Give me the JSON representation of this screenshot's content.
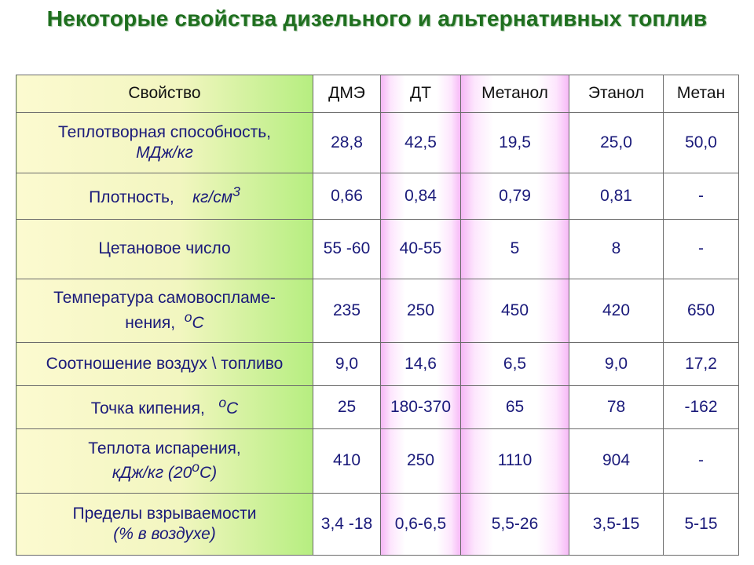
{
  "title": "Некоторые свойства дизельного и альтернативных топлив",
  "table": {
    "header": {
      "property": "Свойство",
      "cols": [
        "ДМЭ",
        "ДТ",
        "Метанол",
        "Этанол",
        "Метан"
      ]
    },
    "rows": [
      {
        "name_line1": "Теплотворная способность,",
        "unit": "МДж/кг",
        "values": [
          "28,8",
          "42,5",
          "19,5",
          "25,0",
          "50,0"
        ]
      },
      {
        "name_line1": "Плотность,",
        "unit": "кг/см",
        "unit_sup": "3",
        "values": [
          "0,66",
          "0,84",
          "0,79",
          "0,81",
          "-"
        ]
      },
      {
        "name_line1": "Цетановое число",
        "values": [
          "55 -60",
          "40-55",
          "5",
          "8",
          "-"
        ]
      },
      {
        "name_line1": "Температура самовоспламе-",
        "name_line2": "нения,",
        "unit_sup": "o",
        "unit": "С",
        "values": [
          "235",
          "250",
          "450",
          "420",
          "650"
        ]
      },
      {
        "name_line1": "Соотношение воздух \\ топливо",
        "values": [
          "9,0",
          "14,6",
          "6,5",
          "9,0",
          "17,2"
        ]
      },
      {
        "name_line1": "Точка кипения,",
        "unit_sup": "o",
        "unit": "С",
        "values": [
          "25",
          "180-370",
          "65",
          "78",
          "-162"
        ]
      },
      {
        "name_line1": "Теплота испарения,",
        "unit_pre": "кДж/кг (20",
        "unit_sup": "o",
        "unit_post": "С)",
        "values": [
          "410",
          "250",
          "1110",
          "904",
          "-"
        ]
      },
      {
        "name_line1": "Пределы взрываемости",
        "unit": "(% в воздухе)",
        "values": [
          "3,4 -18",
          "0,6-6,5",
          "5,5-26",
          "3,5-15",
          "5-15"
        ]
      }
    ]
  }
}
